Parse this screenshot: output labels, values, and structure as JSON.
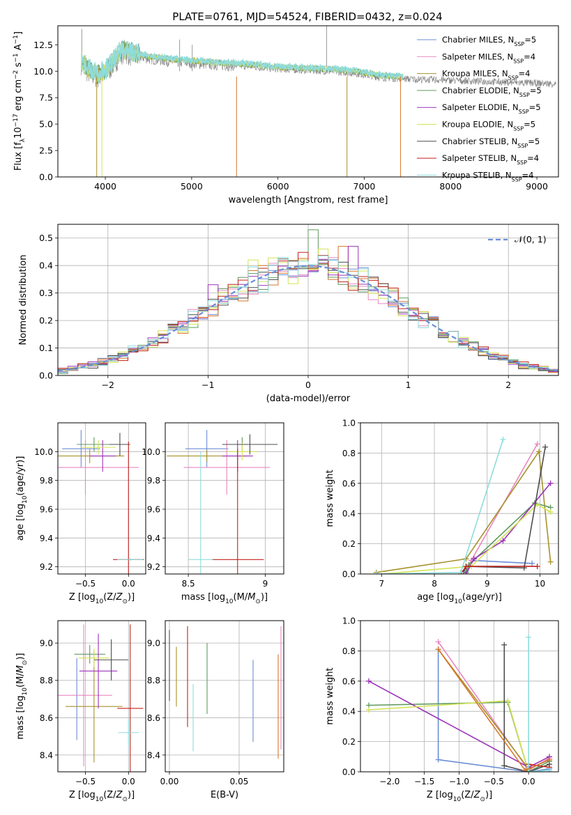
{
  "figure": {
    "title": "PLATE=0761, MJD=54524, FIBERID=0432, z=0.024"
  },
  "colors": {
    "Chabrier MILES": "#6b8dd6",
    "Salpeter MILES": "#e887c0",
    "Kroupa MILES": "#a6922a",
    "Chabrier ELODIE": "#5f9a5f",
    "Salpeter ELODIE": "#9b32b8",
    "Kroupa ELODIE": "#d3e356",
    "Chabrier STELIB": "#4d4d4d",
    "Salpeter STELIB": "#c0221d",
    "Kroupa STELIB": "#8fdcdc",
    "spectrum_data": "#808080",
    "orange_model": "#d8762c",
    "normal_curve": "#6b8dd6"
  },
  "chart_data": [
    {
      "id": "spectrum",
      "type": "line",
      "title": "PLATE=0761, MJD=54524, FIBERID=0432, z=0.024",
      "xlabel": "wavelength [Angstrom, rest frame]",
      "ylabel_parts": [
        "Flux [f",
        "λ",
        "10",
        "−17",
        " erg cm",
        "−2",
        " s",
        "−1",
        " A",
        "−1",
        "]"
      ],
      "xlim": [
        3450,
        9250
      ],
      "ylim": [
        0,
        14.3
      ],
      "xticks": [
        4000,
        5000,
        6000,
        7000,
        8000,
        9000
      ],
      "yticks": [
        0.0,
        2.5,
        5.0,
        7.5,
        10.0,
        12.5
      ],
      "legend_position": "upper right",
      "series": [
        {
          "name": "Chabrier MILES",
          "nssp": "5"
        },
        {
          "name": "Salpeter MILES",
          "nssp": "4"
        },
        {
          "name": "Kroupa MILES",
          "nssp": "4"
        },
        {
          "name": "Chabrier ELODIE",
          "nssp": "5"
        },
        {
          "name": "Salpeter ELODIE",
          "nssp": "5"
        },
        {
          "name": "Kroupa ELODIE",
          "nssp": "5"
        },
        {
          "name": "Chabrier STELIB",
          "nssp": "5"
        },
        {
          "name": "Salpeter STELIB",
          "nssp": "4"
        },
        {
          "name": "Kroupa STELIB",
          "nssp": "4"
        }
      ],
      "continuum": {
        "x": [
          3720,
          3800,
          3900,
          4000,
          4100,
          4200,
          4300,
          4500,
          4800,
          5000,
          5300,
          5600,
          6000,
          6300,
          6600,
          6900,
          7200,
          7400
        ],
        "y": [
          10.8,
          10.0,
          9.5,
          9.8,
          10.8,
          11.9,
          11.6,
          11.2,
          10.9,
          10.8,
          10.6,
          10.5,
          10.2,
          10.1,
          10.0,
          9.8,
          9.4,
          9.3
        ]
      },
      "model_end": 9250
    },
    {
      "id": "residuals",
      "type": "histogram",
      "xlabel": "(data-model)/error",
      "ylabel": "Normed distribution",
      "xlim": [
        -2.5,
        2.5
      ],
      "ylim": [
        0,
        0.55
      ],
      "xticks": [
        -2,
        -1,
        0,
        1,
        2
      ],
      "xtick_labels": [
        "−2",
        "−1",
        "0",
        "1",
        "2"
      ],
      "yticks": [
        0.0,
        0.1,
        0.2,
        0.3,
        0.4,
        0.5
      ],
      "grid": true,
      "bin_width": 0.1,
      "legend_label": "𝒩(0, 1)",
      "legend_position": "upper right",
      "spikes": [
        {
          "x": 0.0,
          "y": 0.53,
          "series": "Chabrier ELODIE"
        },
        {
          "x": 0.1,
          "y": 0.46,
          "series": "Kroupa ELODIE"
        },
        {
          "x": 0.3,
          "y": 0.47,
          "series": "orange_model"
        },
        {
          "x": 0.4,
          "y": 0.47,
          "series": "Salpeter ELODIE"
        },
        {
          "x": -0.6,
          "y": 0.42,
          "series": "Kroupa ELODIE"
        },
        {
          "x": -1.0,
          "y": 0.33,
          "series": "Salpeter ELODIE"
        }
      ]
    },
    {
      "id": "age_vs_Z",
      "type": "errorbar",
      "xlabel": "Z [log10(Z/Z⊙)]",
      "ylabel": "age  [log10(age/yr)]",
      "xlim": [
        -0.82,
        0.2
      ],
      "ylim": [
        9.15,
        10.2
      ],
      "xticks": [
        -0.5,
        0.0
      ],
      "xtick_labels": [
        "−0.5",
        "0.0"
      ],
      "yticks": [
        9.2,
        9.4,
        9.6,
        9.8,
        10.0
      ],
      "grid": true,
      "points": [
        {
          "series": "Chabrier MILES",
          "x": -0.55,
          "xerr": 0.22,
          "y": 10.02,
          "yerr": 0.13
        },
        {
          "series": "Salpeter MILES",
          "x": -0.5,
          "xerr": 0.62,
          "y": 9.89,
          "yerr": 0.19
        },
        {
          "series": "Kroupa MILES",
          "x": -0.45,
          "xerr": 0.4,
          "y": 9.97,
          "yerr": 0.05
        },
        {
          "series": "Chabrier ELODIE",
          "x": -0.4,
          "xerr": 0.2,
          "y": 10.05,
          "yerr": 0.05
        },
        {
          "series": "Salpeter ELODIE",
          "x": -0.3,
          "xerr": 0.15,
          "y": 9.97,
          "yerr": 0.11
        },
        {
          "series": "Kroupa ELODIE",
          "x": -0.35,
          "xerr": 0.2,
          "y": 10.03,
          "yerr": 0.05
        },
        {
          "series": "Chabrier STELIB",
          "x": -0.1,
          "xerr": 0.12,
          "y": 10.05,
          "yerr": 0.08
        },
        {
          "series": "Salpeter STELIB",
          "x": 0.0,
          "xerr": 0.18,
          "y": 9.25,
          "yerr": 0.82
        },
        {
          "series": "Kroupa STELIB",
          "x": 0.02,
          "xerr": 0.15,
          "y": 9.25,
          "yerr": 0.01
        }
      ]
    },
    {
      "id": "age_vs_mass",
      "type": "errorbar",
      "xlabel": "mass [log10(M/M⊙)]",
      "xlim": [
        8.35,
        9.12
      ],
      "ylim": [
        9.15,
        10.2
      ],
      "xticks": [
        8.5,
        9.0
      ],
      "yticks": [
        9.2,
        9.4,
        9.6,
        9.8,
        10.0
      ],
      "grid": true,
      "points": [
        {
          "series": "Chabrier MILES",
          "x": 8.62,
          "xerr": 0.14,
          "y": 10.02,
          "yerr": 0.13
        },
        {
          "series": "Salpeter MILES",
          "x": 8.75,
          "xerr": 0.28,
          "y": 9.89,
          "yerr": 0.19
        },
        {
          "series": "Kroupa MILES",
          "x": 8.62,
          "xerr": 0.26,
          "y": 9.97,
          "yerr": 0.04
        },
        {
          "series": "Chabrier ELODIE",
          "x": 8.85,
          "xerr": 0.1,
          "y": 10.05,
          "yerr": 0.05
        },
        {
          "series": "Salpeter ELODIE",
          "x": 8.82,
          "xerr": 0.1,
          "y": 9.97,
          "yerr": 0.11
        },
        {
          "series": "Kroupa ELODIE",
          "x": 8.85,
          "xerr": 0.1,
          "y": 10.0,
          "yerr": 0.06
        },
        {
          "series": "Chabrier STELIB",
          "x": 8.9,
          "xerr": 0.18,
          "y": 10.05,
          "yerr": 0.07
        },
        {
          "series": "Salpeter STELIB",
          "x": 8.82,
          "xerr": 0.17,
          "y": 9.25,
          "yerr": 0.77
        },
        {
          "series": "Kroupa STELIB",
          "x": 8.58,
          "xerr": 0.08,
          "y": 9.25,
          "yerr": 0.75
        }
      ]
    },
    {
      "id": "weight_vs_age",
      "type": "line",
      "xlabel": "age  [log10(age/yr)]",
      "ylabel": "mass weight",
      "xlim": [
        6.6,
        10.35
      ],
      "ylim": [
        0,
        1.0
      ],
      "xticks": [
        7,
        8,
        9,
        10
      ],
      "yticks": [
        0.0,
        0.2,
        0.4,
        0.6,
        0.8,
        1.0
      ],
      "grid": true,
      "series": [
        {
          "name": "Chabrier MILES",
          "x": [
            8.6,
            8.7,
            9.85
          ],
          "y": [
            0.02,
            0.09,
            0.07
          ]
        },
        {
          "name": "Salpeter MILES",
          "x": [
            8.6,
            8.7,
            9.95
          ],
          "y": [
            0.01,
            0.09,
            0.86
          ]
        },
        {
          "name": "Kroupa MILES",
          "x": [
            6.9,
            8.6,
            9.98,
            10.2
          ],
          "y": [
            0.01,
            0.1,
            0.81,
            0.08
          ]
        },
        {
          "name": "Chabrier ELODIE",
          "x": [
            8.6,
            8.65,
            9.9,
            10.2
          ],
          "y": [
            0.01,
            0.06,
            0.47,
            0.44
          ]
        },
        {
          "name": "Salpeter ELODIE",
          "x": [
            8.6,
            8.75,
            9.3,
            10.2
          ],
          "y": [
            0.0,
            0.1,
            0.22,
            0.6
          ]
        },
        {
          "name": "Kroupa ELODIE",
          "x": [
            7.0,
            8.7,
            9.95,
            10.2
          ],
          "y": [
            0.0,
            0.05,
            0.46,
            0.41
          ]
        },
        {
          "name": "Chabrier STELIB",
          "x": [
            8.55,
            8.6,
            9.7,
            10.1
          ],
          "y": [
            0.01,
            0.05,
            0.04,
            0.84
          ]
        },
        {
          "name": "Salpeter STELIB",
          "x": [
            8.5,
            8.6,
            9.95
          ],
          "y": [
            0.0,
            0.05,
            0.05
          ]
        },
        {
          "name": "Kroupa STELIB",
          "x": [
            6.9,
            8.5,
            9.3
          ],
          "y": [
            0.0,
            0.01,
            0.89
          ]
        }
      ]
    },
    {
      "id": "mass_vs_Z",
      "type": "errorbar",
      "xlabel": "Z [log10(Z/Z⊙)]",
      "ylabel": "mass [log10(M/M⊙)]",
      "xlim": [
        -0.82,
        0.2
      ],
      "ylim": [
        8.31,
        9.12
      ],
      "xticks": [
        -0.5,
        0.0
      ],
      "xtick_labels": [
        "−0.5",
        "0.0"
      ],
      "yticks": [
        8.4,
        8.6,
        8.8,
        9.0
      ],
      "grid": true,
      "points": [
        {
          "series": "Chabrier MILES",
          "x": -0.6,
          "xerr": 0.0,
          "y": 8.7,
          "yerr": 0.22
        },
        {
          "series": "Salpeter MILES",
          "x": -0.52,
          "xerr": 0.33,
          "y": 8.72,
          "yerr": 0.38
        },
        {
          "series": "Kroupa MILES",
          "x": -0.4,
          "xerr": 0.33,
          "y": 8.66,
          "yerr": 0.3
        },
        {
          "series": "Chabrier ELODIE",
          "x": -0.45,
          "xerr": 0.18,
          "y": 8.94,
          "yerr": 0.05
        },
        {
          "series": "Salpeter ELODIE",
          "x": -0.35,
          "xerr": 0.22,
          "y": 8.85,
          "yerr": 0.2
        },
        {
          "series": "Kroupa ELODIE",
          "x": -0.4,
          "xerr": 0.18,
          "y": 8.92,
          "yerr": 0.05
        },
        {
          "series": "Chabrier STELIB",
          "x": -0.2,
          "xerr": 0.2,
          "y": 8.91,
          "yerr": 0.11
        },
        {
          "series": "Salpeter STELIB",
          "x": 0.02,
          "xerr": 0.15,
          "y": 8.65,
          "yerr": 0.45
        },
        {
          "series": "Kroupa STELIB",
          "x": 0.0,
          "xerr": 0.12,
          "y": 8.52,
          "yerr": 0.07
        }
      ]
    },
    {
      "id": "mass_vs_ebv",
      "type": "errorbar",
      "xlabel": "E(B-V)",
      "xlim": [
        -0.003,
        0.082
      ],
      "ylim": [
        8.31,
        9.12
      ],
      "xticks": [
        0.0,
        0.05
      ],
      "xtick_labels": [
        "0.00",
        "0.05"
      ],
      "yticks": [
        8.4,
        8.6,
        8.8,
        9.0
      ],
      "grid": true,
      "points": [
        {
          "series": "Chabrier STELIB",
          "x": 0.0,
          "y": 8.88,
          "yerr": 0.19
        },
        {
          "series": "Kroupa MILES",
          "x": 0.005,
          "y": 8.82,
          "yerr": 0.16
        },
        {
          "series": "Salpeter STELIB",
          "x": 0.013,
          "y": 8.82,
          "yerr": 0.27
        },
        {
          "series": "Kroupa STELIB",
          "x": 0.017,
          "y": 8.6,
          "yerr": 0.18
        },
        {
          "series": "Chabrier ELODIE",
          "x": 0.027,
          "y": 8.81,
          "yerr": 0.19
        },
        {
          "series": "Chabrier MILES",
          "x": 0.06,
          "y": 8.69,
          "yerr": 0.22
        },
        {
          "series": "orange_model",
          "x": 0.078,
          "y": 8.66,
          "yerr": 0.28
        },
        {
          "series": "Salpeter MILES",
          "x": 0.08,
          "y": 8.76,
          "yerr": 0.33
        }
      ]
    },
    {
      "id": "weight_vs_Z",
      "type": "line",
      "xlabel": "Z [log10(Z/Z⊙)]",
      "ylabel": "mass weight",
      "xlim": [
        -2.42,
        0.43
      ],
      "ylim": [
        0,
        1.0
      ],
      "xticks": [
        -2.0,
        -1.5,
        -1.0,
        -0.5,
        0.0
      ],
      "xtick_labels": [
        "−2.0",
        "−1.5",
        "−1.0",
        "−0.5",
        "0.0"
      ],
      "yticks": [
        0.0,
        0.2,
        0.4,
        0.6,
        0.8,
        1.0
      ],
      "grid": true,
      "series": [
        {
          "name": "Chabrier MILES",
          "x": [
            -1.3,
            -1.3,
            0.0,
            0.3,
            0.3
          ],
          "y": [
            0.81,
            0.08,
            0.0,
            0.02,
            0.0
          ]
        },
        {
          "name": "Salpeter MILES",
          "x": [
            -1.3,
            0.0,
            0.3
          ],
          "y": [
            0.86,
            0.01,
            0.09
          ]
        },
        {
          "name": "Kroupa MILES",
          "x": [
            -1.3,
            0.0,
            0.3
          ],
          "y": [
            0.81,
            0.02,
            0.08
          ]
        },
        {
          "name": "Chabrier ELODIE",
          "x": [
            -2.3,
            -0.3,
            0.0,
            0.3
          ],
          "y": [
            0.44,
            0.46,
            0.0,
            0.07
          ]
        },
        {
          "name": "Salpeter ELODIE",
          "x": [
            -2.3,
            0.0,
            0.3
          ],
          "y": [
            0.6,
            0.03,
            0.1
          ]
        },
        {
          "name": "Kroupa ELODIE",
          "x": [
            -2.3,
            -0.3,
            0.0,
            0.3
          ],
          "y": [
            0.41,
            0.47,
            0.0,
            0.05
          ]
        },
        {
          "name": "Chabrier STELIB",
          "x": [
            -0.35,
            -0.35,
            0.0,
            0.3
          ],
          "y": [
            0.84,
            0.04,
            0.0,
            0.05
          ]
        },
        {
          "name": "Salpeter STELIB",
          "x": [
            0.0,
            0.3
          ],
          "y": [
            0.05,
            0.03
          ]
        },
        {
          "name": "Kroupa STELIB",
          "x": [
            0.0,
            0.0,
            0.3
          ],
          "y": [
            0.89,
            0.0,
            0.01
          ]
        }
      ],
      "extra_series": [
        {
          "color": "orange_model",
          "x": [
            -1.3,
            -0.05,
            0.3
          ],
          "y": [
            0.81,
            0.01,
            0.08
          ]
        }
      ]
    }
  ]
}
